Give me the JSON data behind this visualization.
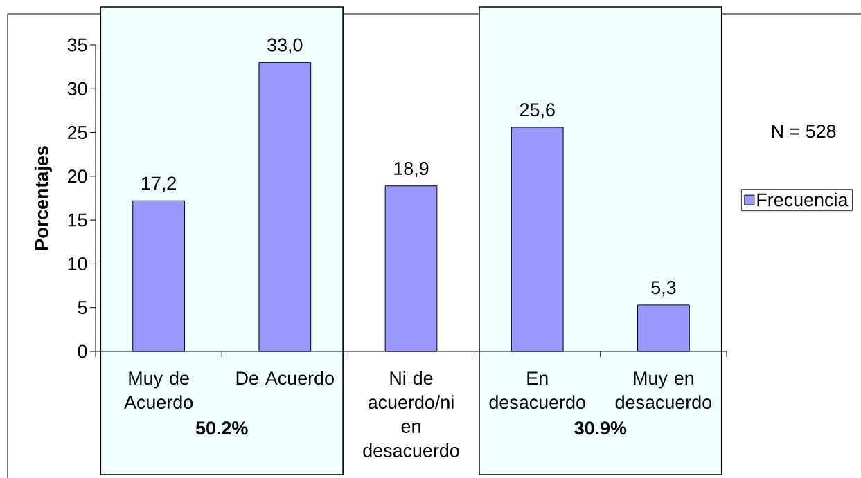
{
  "chart_data": {
    "type": "bar",
    "categories": [
      "Muy de Acuerdo",
      "De Acuerdo",
      "Ni de acuerdo/ni en desacuerdo",
      "En desacuerdo",
      "Muy en desacuerdo"
    ],
    "series": [
      {
        "name": "Frecuencia",
        "color": "#9999ff",
        "values": [
          17.2,
          33.0,
          18.9,
          25.6,
          5.3
        ],
        "value_labels": [
          "17,2",
          "33,0",
          "18,9",
          "25,6",
          "5,3"
        ]
      }
    ],
    "ylabel": "Porcentajes",
    "ylim": [
      0,
      35
    ],
    "yticks": [
      0,
      5,
      10,
      15,
      20,
      25,
      30,
      35
    ],
    "bands": [
      {
        "axis": "x",
        "from": "Muy de Acuerdo",
        "to": "De Acuerdo",
        "label": "50.2%",
        "color": "#f0ffff"
      },
      {
        "axis": "x",
        "from": "En desacuerdo",
        "to": "Muy en desacuerdo",
        "label": "30.9%",
        "color": "#f0ffff"
      }
    ],
    "annotations": [
      "N = 528"
    ],
    "legend": "right"
  }
}
